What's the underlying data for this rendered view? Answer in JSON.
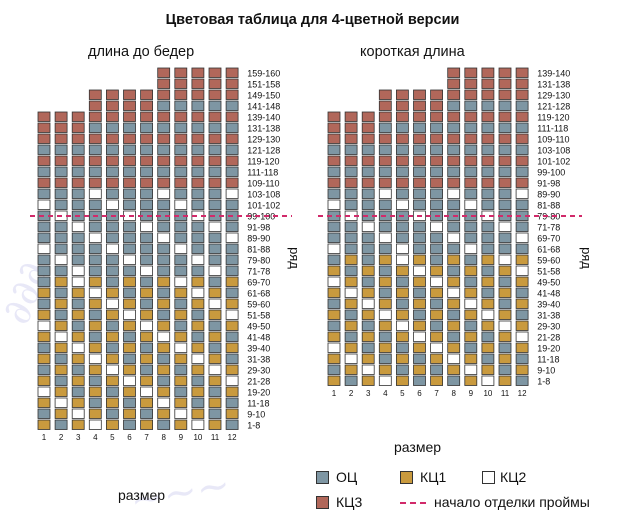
{
  "title": "Цветовая таблица для 4-цветной версии",
  "left_chart": {
    "title": "длина до бедер",
    "row_labels": [
      "159-160",
      "151-158",
      "149-150",
      "141-148",
      "139-140",
      "131-138",
      "129-130",
      "121-128",
      "119-120",
      "111-118",
      "109-110",
      "103-108",
      "101-102",
      "99-100",
      "91-98",
      "89-90",
      "81-88",
      "79-80",
      "71-78",
      "69-70",
      "61-68",
      "59-60",
      "51-58",
      "49-50",
      "41-48",
      "39-40",
      "31-38",
      "29-30",
      "21-28",
      "19-20",
      "11-18",
      "9-10",
      "1-8"
    ],
    "axis_label": "ряд",
    "size_labels": [
      "1",
      "2",
      "3",
      "4",
      "5",
      "6",
      "7",
      "8",
      "9",
      "10",
      "11",
      "12"
    ],
    "size_axis_label": "размер"
  },
  "right_chart": {
    "title": "короткая длина",
    "row_labels": [
      "139-140",
      "131-138",
      "129-130",
      "121-128",
      "119-120",
      "111-118",
      "109-110",
      "103-108",
      "101-102",
      "99-100",
      "91-98",
      "89-90",
      "81-88",
      "79-80",
      "71-78",
      "69-70",
      "61-68",
      "59-60",
      "51-58",
      "49-50",
      "41-48",
      "39-40",
      "31-38",
      "29-30",
      "21-28",
      "19-20",
      "11-18",
      "9-10",
      "1-8"
    ],
    "axis_label": "ряд",
    "size_labels": [
      "1",
      "2",
      "3",
      "4",
      "5",
      "6",
      "7",
      "8",
      "9",
      "10",
      "11",
      "12"
    ],
    "size_axis_label": "размер"
  },
  "legend": {
    "oc": "ОЦ",
    "kc1": "КЦ1",
    "kc2": "КЦ2",
    "kc3": "КЦ3",
    "armhole": "начало отделки проймы"
  },
  "colors": {
    "oc": "#7e96a3",
    "kc1": "#c99a3e",
    "kc2": "#ffffff",
    "kc3": "#b1675a",
    "armhole_line": "#d12a6a"
  }
}
